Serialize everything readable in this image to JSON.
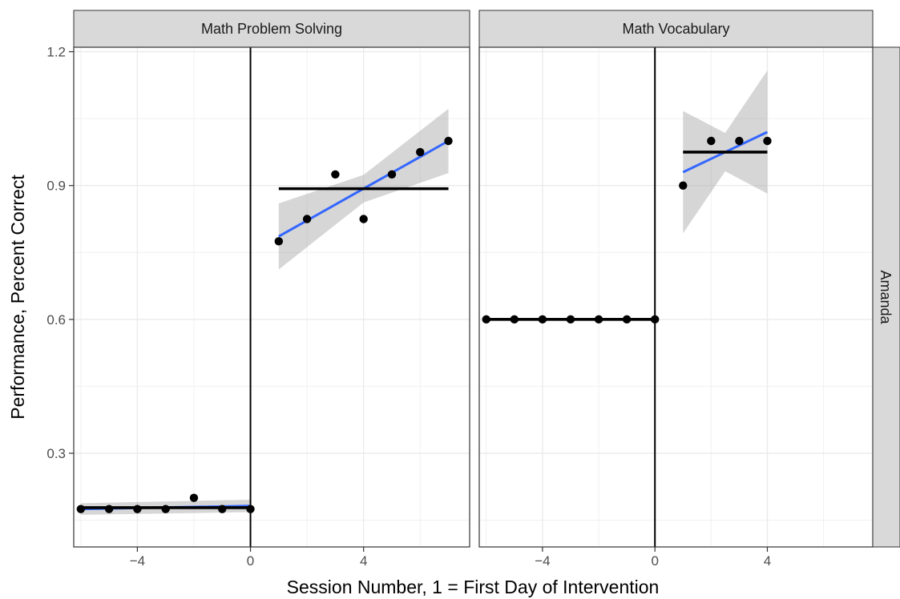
{
  "chart_data": {
    "type": "scatter",
    "xlabel": "Session Number, 1 = First Day of Intervention",
    "ylabel": "Performance, Percent Correct",
    "row_facet": "Amanda",
    "xlim": [
      -6.25,
      7.75
    ],
    "ylim": [
      0.09,
      1.21
    ],
    "x_ticks": [
      -4,
      0,
      4
    ],
    "x_tick_labels": [
      "−4",
      "0",
      "4"
    ],
    "y_ticks": [
      0.3,
      0.6,
      0.9,
      1.2
    ],
    "y_tick_labels": [
      "0.3",
      "0.6",
      "0.9",
      "1.2"
    ],
    "grid": true,
    "phase_line_x": 0,
    "colors": {
      "points": "#000000",
      "trend": "#3366FF",
      "ribbon": "#999999",
      "mean_line": "#000000",
      "strip_bg": "#D9D9D9"
    },
    "panels": [
      {
        "title": "Math Problem Solving",
        "baseline": {
          "x": [
            -6,
            -5,
            -4,
            -3,
            -2,
            -1,
            0
          ],
          "y": [
            0.175,
            0.175,
            0.175,
            0.175,
            0.2,
            0.175,
            0.175
          ],
          "mean": 0.178,
          "trend": {
            "x": [
              -6,
              0
            ],
            "y": [
              0.175,
              0.182
            ],
            "band_lower": [
              0.162,
              0.168
            ],
            "band_upper": [
              0.188,
              0.196
            ]
          }
        },
        "intervention": {
          "x": [
            1,
            2,
            3,
            4,
            5,
            6,
            7
          ],
          "y": [
            0.775,
            0.825,
            0.925,
            0.825,
            0.925,
            0.975,
            1.0
          ],
          "mean": 0.893,
          "trend": {
            "x": [
              1,
              4,
              7
            ],
            "y": [
              0.786,
              0.893,
              1.0
            ],
            "band_lower": [
              0.712,
              0.862,
              0.928
            ],
            "band_upper": [
              0.86,
              0.924,
              1.072
            ]
          }
        }
      },
      {
        "title": "Math Vocabulary",
        "baseline": {
          "x": [
            -6,
            -5,
            -4,
            -3,
            -2,
            -1,
            0
          ],
          "y": [
            0.6,
            0.6,
            0.6,
            0.6,
            0.6,
            0.6,
            0.6
          ],
          "mean": 0.6,
          "trend": {
            "x": [
              -6,
              0
            ],
            "y": [
              0.6,
              0.6
            ],
            "band_lower": [
              0.6,
              0.6
            ],
            "band_upper": [
              0.6,
              0.6
            ]
          }
        },
        "intervention": {
          "x": [
            1,
            2,
            3,
            4
          ],
          "y": [
            0.9,
            1.0,
            1.0,
            1.0
          ],
          "mean": 0.975,
          "trend": {
            "x": [
              1,
              2.5,
              4
            ],
            "y": [
              0.93,
              0.975,
              1.02
            ],
            "band_lower": [
              0.793,
              0.932,
              0.882
            ],
            "band_upper": [
              1.067,
              1.018,
              1.158
            ]
          }
        }
      }
    ]
  }
}
